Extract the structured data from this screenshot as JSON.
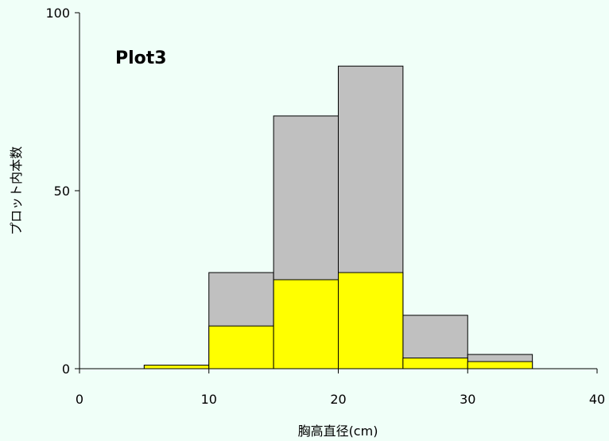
{
  "chart_data": {
    "type": "bar",
    "title": "Plot3",
    "xlabel": "胸高直径(cm)",
    "ylabel": "プロット内本数",
    "xlim": [
      0,
      40
    ],
    "ylim": [
      0,
      100
    ],
    "x_ticks": [
      "0",
      "10",
      "20",
      "30",
      "40"
    ],
    "y_ticks": [
      "0",
      "50",
      "100"
    ],
    "bins": [
      {
        "x0": 5,
        "x1": 10
      },
      {
        "x0": 10,
        "x1": 15
      },
      {
        "x0": 15,
        "x1": 20
      },
      {
        "x0": 20,
        "x1": 25
      },
      {
        "x0": 25,
        "x1": 30
      },
      {
        "x0": 30,
        "x1": 35
      }
    ],
    "series": [
      {
        "color": "#c0c0c0",
        "values": [
          1,
          27,
          71,
          85,
          15,
          4
        ]
      },
      {
        "color": "#ffff00",
        "values": [
          1,
          12,
          25,
          27,
          3,
          2
        ]
      }
    ],
    "grid": false,
    "legend": "none"
  }
}
